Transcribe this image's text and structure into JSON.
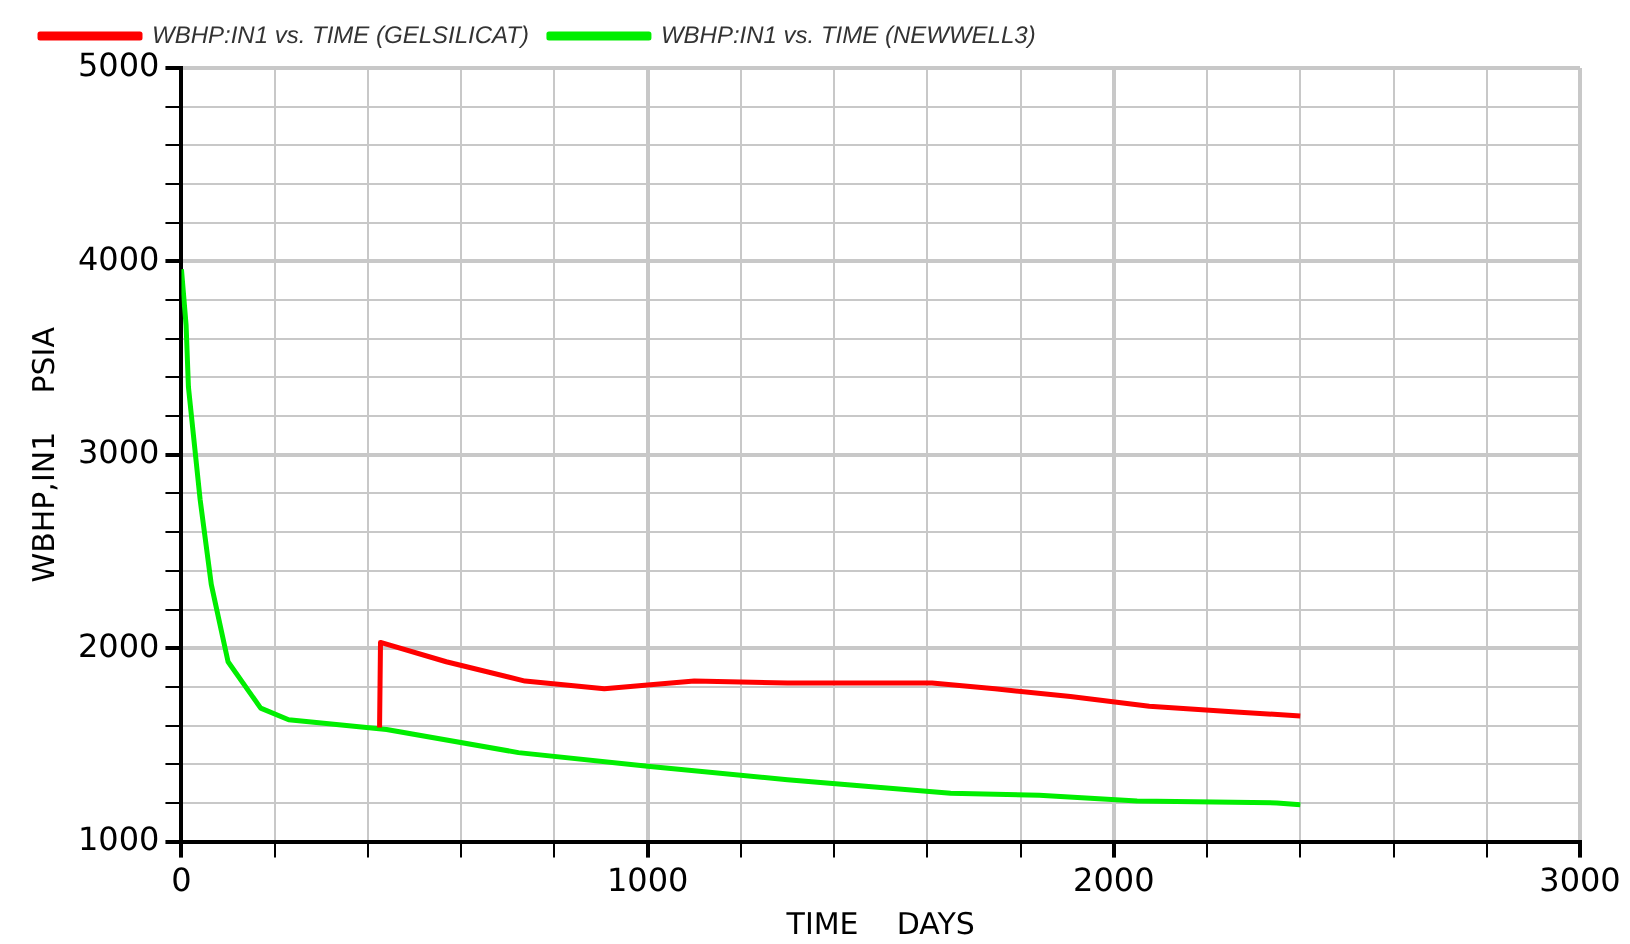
{
  "chart_data": {
    "type": "line",
    "xlabel": "TIME    DAYS",
    "ylabel": "WBHP,IN1    PSIA",
    "series": [
      {
        "name": "WBHP:IN1 vs. TIME (GELSILICAT)",
        "color": "#ff0000",
        "x": [
          425,
          427,
          568,
          737,
          907,
          1000,
          1100,
          1300,
          1610,
          1745,
          1907,
          2076,
          2262,
          2400
        ],
        "values": [
          1590,
          2030,
          1930,
          1830,
          1790,
          1810,
          1830,
          1820,
          1820,
          1790,
          1750,
          1700,
          1670,
          1650
        ]
      },
      {
        "name": "WBHP:IN1 vs. TIME (NEWWELL3)",
        "color": "#00ee00",
        "x": [
          0,
          10,
          15,
          40,
          64,
          100,
          170,
          230,
          440,
          723,
          1000,
          1300,
          1500,
          1650,
          1840,
          2050,
          2350,
          2400
        ],
        "values": [
          3960,
          3670,
          3350,
          2770,
          2330,
          1930,
          1690,
          1630,
          1580,
          1460,
          1390,
          1320,
          1280,
          1250,
          1240,
          1210,
          1200,
          1190
        ]
      }
    ],
    "xlim": [
      0,
      3000
    ],
    "ylim": [
      1000,
      5000
    ],
    "xticks": [
      0,
      {
        "value": 200,
        "label": null
      },
      {
        "value": 400,
        "label": null
      },
      {
        "value": 600,
        "label": null
      },
      {
        "value": 800,
        "label": null
      },
      1000,
      {
        "value": 1200,
        "label": null
      },
      {
        "value": 1400,
        "label": null
      },
      {
        "value": 1600,
        "label": null
      },
      {
        "value": 1800,
        "label": null
      },
      2000,
      {
        "value": 2200,
        "label": null
      },
      {
        "value": 2400,
        "label": null
      },
      {
        "value": 2600,
        "label": null
      },
      {
        "value": 2800,
        "label": null
      },
      3000
    ],
    "yticks": [
      1000,
      {
        "value": 1200,
        "label": null
      },
      {
        "value": 1400,
        "label": null
      },
      {
        "value": 1600,
        "label": null
      },
      {
        "value": 1800,
        "label": null
      },
      2000,
      {
        "value": 2200,
        "label": null
      },
      {
        "value": 2400,
        "label": null
      },
      {
        "value": 2600,
        "label": null
      },
      {
        "value": 2800,
        "label": null
      },
      3000,
      {
        "value": 3200,
        "label": null
      },
      {
        "value": 3400,
        "label": null
      },
      {
        "value": 3600,
        "label": null
      },
      {
        "value": 3800,
        "label": null
      },
      4000,
      {
        "value": 4200,
        "label": null
      },
      {
        "value": 4400,
        "label": null
      },
      {
        "value": 4600,
        "label": null
      },
      {
        "value": 4800,
        "label": null
      },
      5000
    ],
    "grid": true,
    "legend": "top left",
    "marker": "none",
    "line_style": "solid"
  }
}
